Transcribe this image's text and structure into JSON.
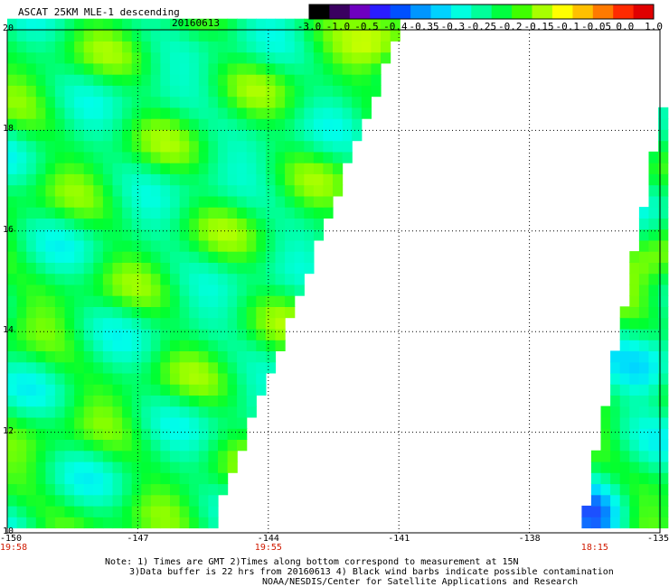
{
  "header": {
    "title": "ASCAT 25KM MLE-1 descending",
    "date": "20160613"
  },
  "colorbar": {
    "labels": [
      "-3.0",
      "-1.0",
      "-0.5",
      "-0.4",
      "-0.35",
      "-0.3",
      "-0.25",
      "-0.2",
      "-0.15",
      "-0.1",
      "-0.05",
      "0.0",
      "1.0"
    ],
    "colors": [
      "#000000",
      "#3a0060",
      "#6e00c0",
      "#2a1cff",
      "#0050ff",
      "#0096ff",
      "#00d2ff",
      "#00ffe0",
      "#00ff9a",
      "#00ff40",
      "#40ff00",
      "#a8ff00",
      "#ffff00",
      "#ffc000",
      "#ff7a00",
      "#ff2a00",
      "#e00000"
    ]
  },
  "map": {
    "lon_labels": [
      "-150",
      "-147",
      "-144",
      "-141",
      "-138",
      "-135"
    ],
    "lat_labels": [
      "20",
      "18",
      "16",
      "14",
      "12",
      "10"
    ],
    "lon_range": [
      -150,
      -135
    ],
    "lat_range": [
      10,
      20
    ],
    "grid_lons": [
      -147,
      -144,
      -141,
      -138
    ],
    "grid_lats": [
      18,
      16,
      14,
      12
    ],
    "left_swath_east_edge": [
      [
        10.1,
        -145.3
      ],
      [
        20.0,
        -141.0
      ]
    ],
    "right_swath_west_edge": [
      [
        10.1,
        -136.8
      ],
      [
        20.0,
        -134.6
      ]
    ],
    "mle_range": [
      -0.3,
      -0.05
    ],
    "typical_mle": -0.17,
    "anomalies": [
      {
        "label": "low MLE area",
        "lon": -135.3,
        "lat": 13.2,
        "mle": -0.31
      },
      {
        "label": "low MLE area",
        "lon": -135.7,
        "lat": 17.8,
        "mle": -0.36
      },
      {
        "label": "low MLE area",
        "lon": -136.5,
        "lat": 10.3,
        "mle": -0.38
      },
      {
        "label": "high MLE area",
        "lon": -135.2,
        "lat": 15.4,
        "mle": -0.1
      },
      {
        "label": "high MLE area",
        "lon": -141.4,
        "lat": 19.8,
        "mle": -0.1
      }
    ]
  },
  "time_labels": [
    {
      "text": "19:58",
      "lon": -150
    },
    {
      "text": "19:55",
      "lon": -144
    },
    {
      "text": "18:15",
      "lon": -136.5
    }
  ],
  "notes": [
    "Note: 1) Times are GMT 2)Times along bottom correspond to measurement at 15N",
    "3)Data buffer is 22 hrs from 20160613 4) Black wind barbs indicate possible contamination",
    "NOAA/NESDIS/Center for Satellite Applications and Research"
  ]
}
